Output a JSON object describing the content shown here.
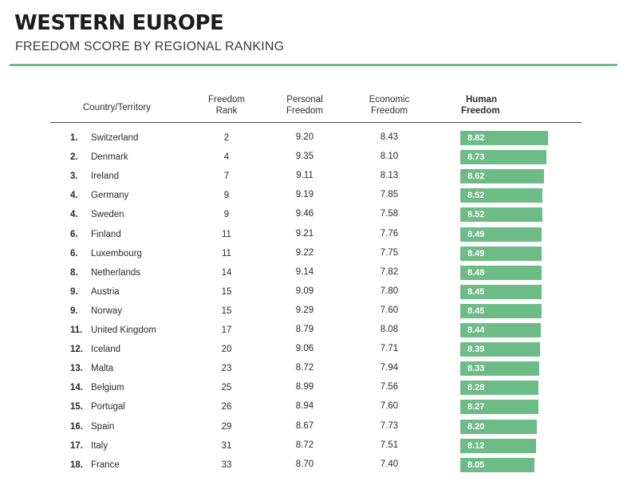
{
  "title": "WESTERN EUROPE",
  "subtitle": "FREEDOM SCORE BY REGIONAL RANKING",
  "accent_color": "#6dbb87",
  "headers": {
    "country": "Country/Territory",
    "freedom_rank_1": "Freedom",
    "freedom_rank_2": "Rank",
    "personal_1": "Personal",
    "personal_2": "Freedom",
    "economic_1": "Economic",
    "economic_2": "Freedom",
    "human_1": "Human",
    "human_2": "Freedom"
  },
  "rows": [
    {
      "rank": "1.",
      "country": "Switzerland",
      "freedom_rank": "2",
      "personal": "9.20",
      "economic": "8.43",
      "human": "8.82"
    },
    {
      "rank": "2.",
      "country": "Denmark",
      "freedom_rank": "4",
      "personal": "9.35",
      "economic": "8.10",
      "human": "8.73"
    },
    {
      "rank": "3.",
      "country": "Ireland",
      "freedom_rank": "7",
      "personal": "9.11",
      "economic": "8.13",
      "human": "8.62"
    },
    {
      "rank": "4.",
      "country": "Germany",
      "freedom_rank": "9",
      "personal": "9.19",
      "economic": "7.85",
      "human": "8.52"
    },
    {
      "rank": "4.",
      "country": "Sweden",
      "freedom_rank": "9",
      "personal": "9.46",
      "economic": "7.58",
      "human": "8.52"
    },
    {
      "rank": "6.",
      "country": "Finland",
      "freedom_rank": "11",
      "personal": "9.21",
      "economic": "7.76",
      "human": "8.49"
    },
    {
      "rank": "6.",
      "country": "Luxembourg",
      "freedom_rank": "11",
      "personal": "9.22",
      "economic": "7.75",
      "human": "8.49"
    },
    {
      "rank": "8.",
      "country": "Netherlands",
      "freedom_rank": "14",
      "personal": "9.14",
      "economic": "7.82",
      "human": "8.48"
    },
    {
      "rank": "9.",
      "country": "Austria",
      "freedom_rank": "15",
      "personal": "9.09",
      "economic": "7.80",
      "human": "8.45"
    },
    {
      "rank": "9.",
      "country": "Norway",
      "freedom_rank": "15",
      "personal": "9.29",
      "economic": "7.60",
      "human": "8.45"
    },
    {
      "rank": "11.",
      "country": "United Kingdom",
      "freedom_rank": "17",
      "personal": "8.79",
      "economic": "8.08",
      "human": "8.44"
    },
    {
      "rank": "12.",
      "country": "Iceland",
      "freedom_rank": "20",
      "personal": "9.06",
      "economic": "7.71",
      "human": "8.39"
    },
    {
      "rank": "13.",
      "country": "Malta",
      "freedom_rank": "23",
      "personal": "8.72",
      "economic": "7.94",
      "human": "8.33"
    },
    {
      "rank": "14.",
      "country": "Belgium",
      "freedom_rank": "25",
      "personal": "8.99",
      "economic": "7.56",
      "human": "8.28"
    },
    {
      "rank": "15.",
      "country": "Portugal",
      "freedom_rank": "26",
      "personal": "8.94",
      "economic": "7.60",
      "human": "8.27"
    },
    {
      "rank": "16.",
      "country": "Spain",
      "freedom_rank": "29",
      "personal": "8.67",
      "economic": "7.73",
      "human": "8.20"
    },
    {
      "rank": "17.",
      "country": "Italy",
      "freedom_rank": "31",
      "personal": "8.72",
      "economic": "7.51",
      "human": "8.12"
    },
    {
      "rank": "18.",
      "country": "France",
      "freedom_rank": "33",
      "personal": "8.70",
      "economic": "7.40",
      "human": "8.05"
    }
  ]
}
